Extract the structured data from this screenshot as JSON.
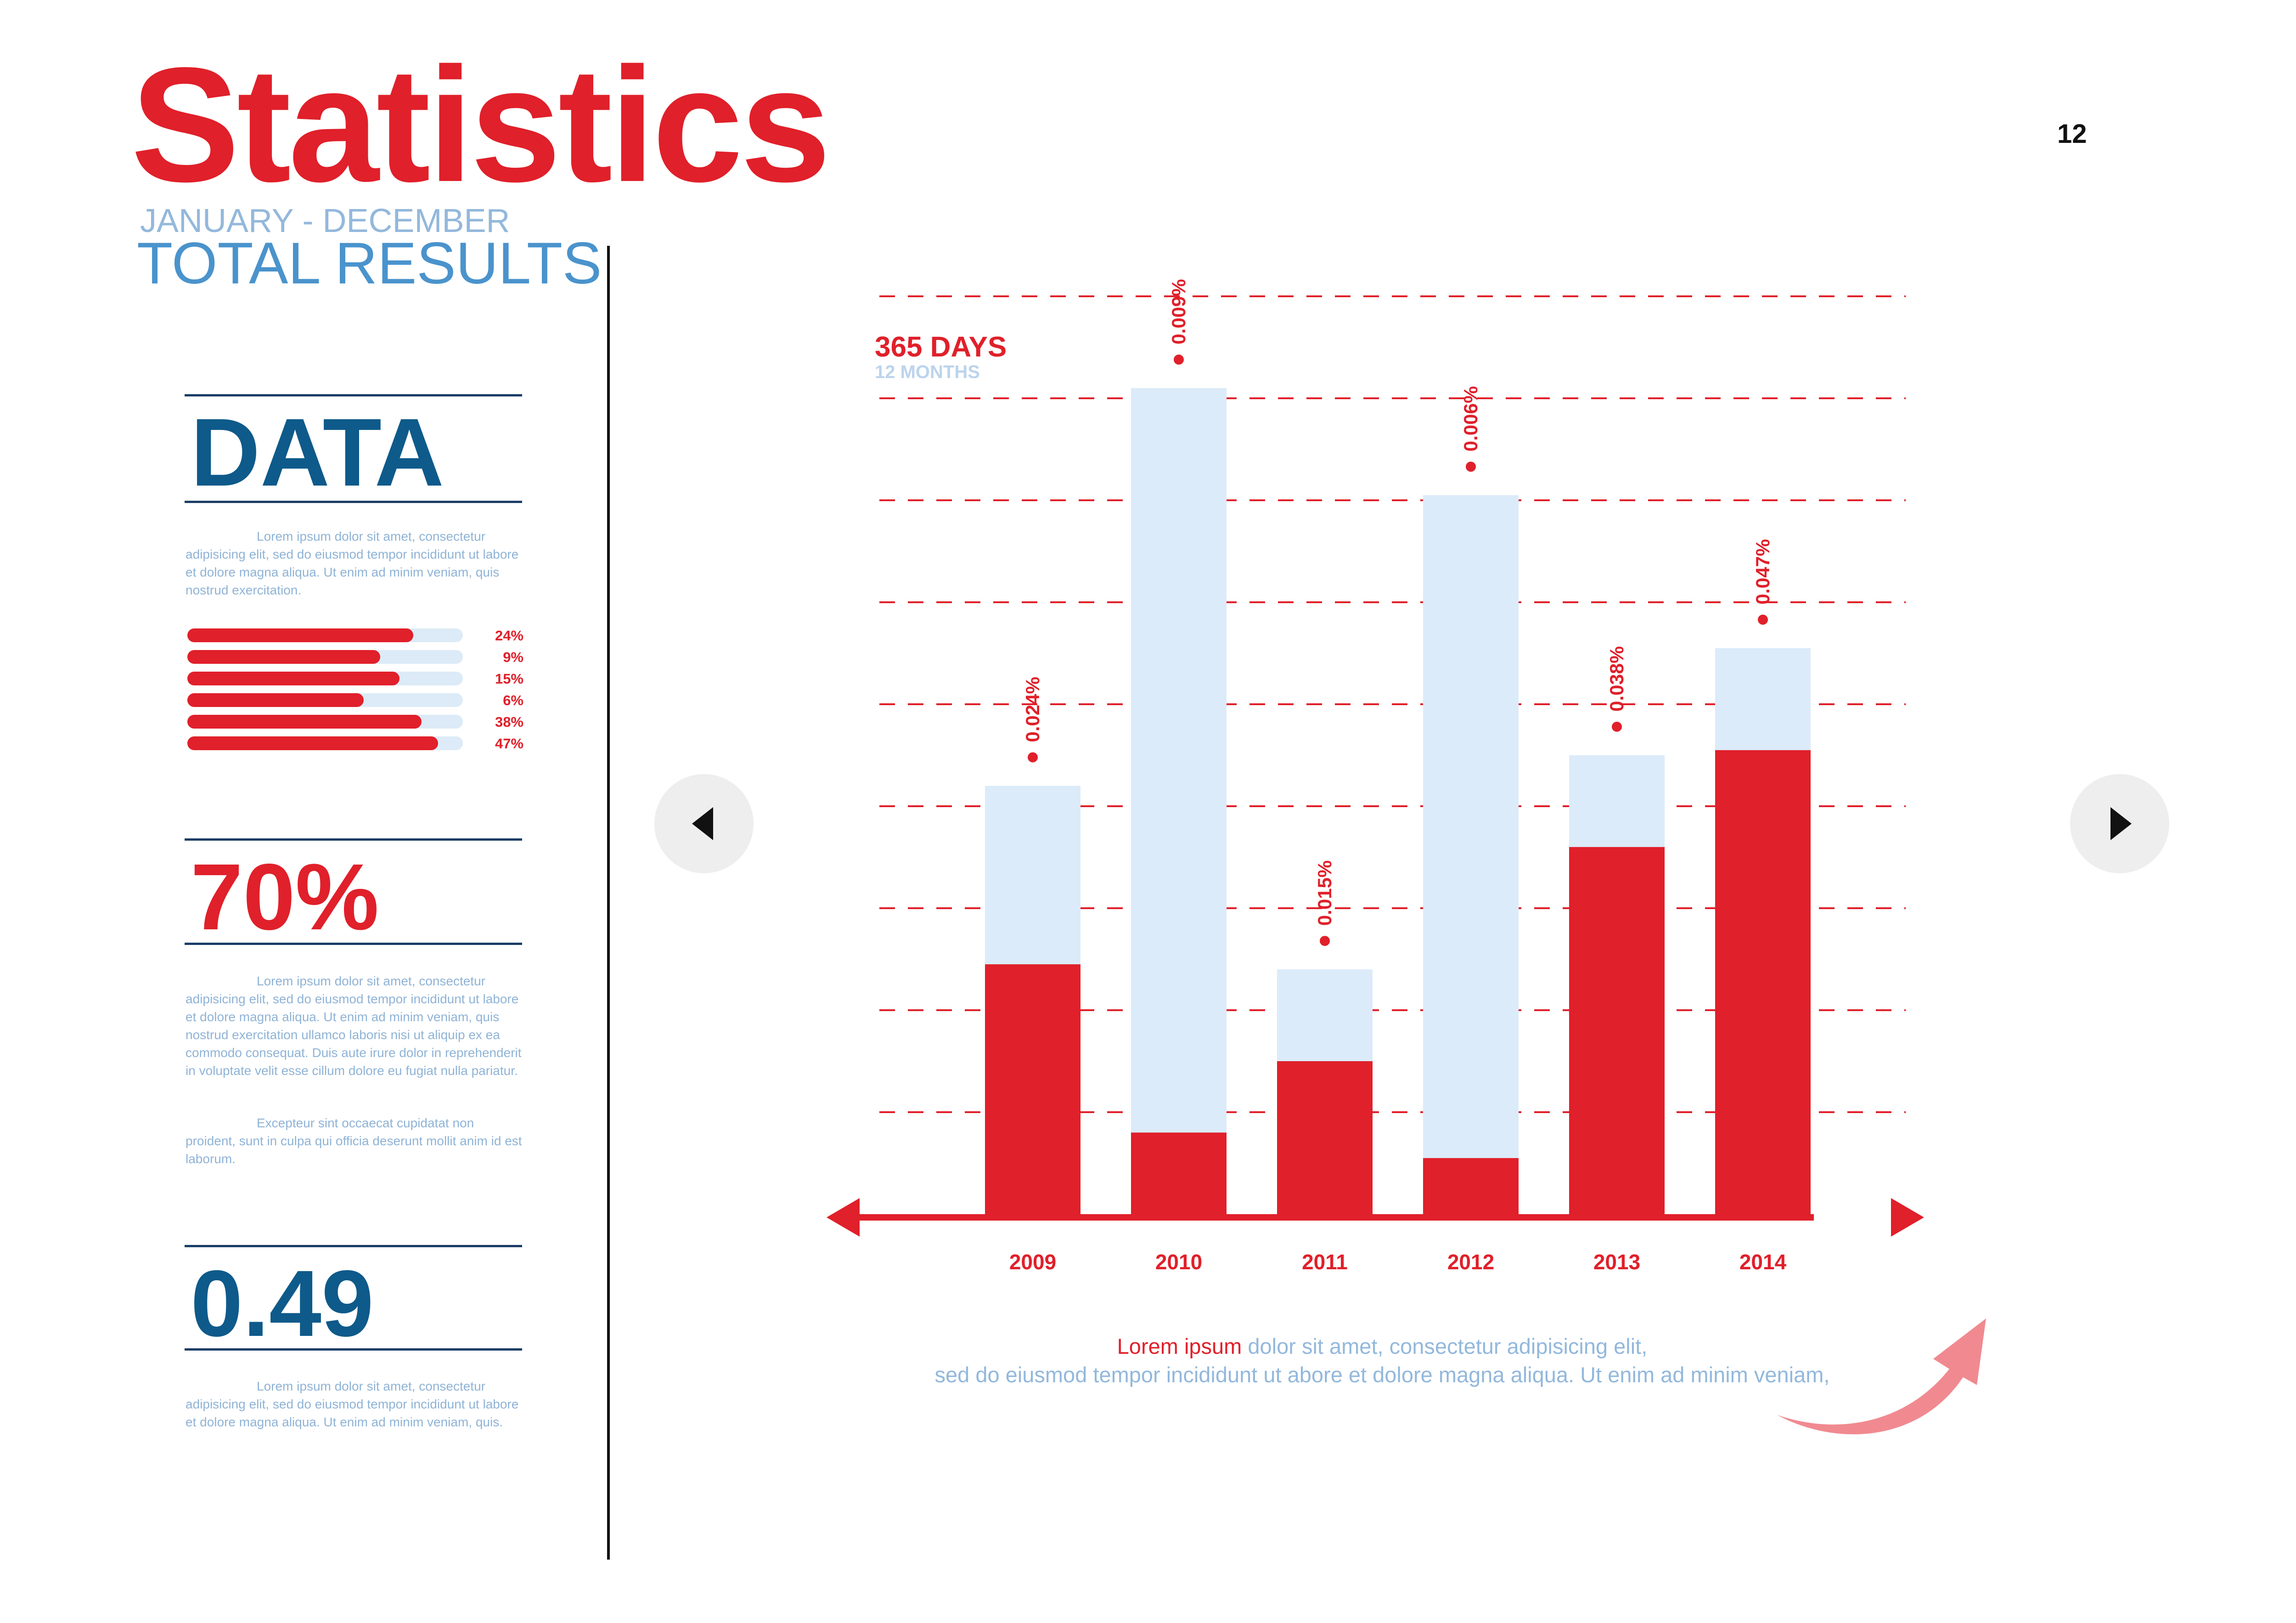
{
  "header": {
    "title": "Statistics",
    "subtitle": "JANUARY - DECEMBER",
    "heading": "TOTAL RESULTS",
    "page_number": "12"
  },
  "sidebar": {
    "data_block": {
      "label": "DATA",
      "text": "Lorem ipsum dolor sit amet, consectetur adipisicing elit, sed do eiusmod tempor incididunt ut labore et dolore magna aliqua. Ut enim ad minim veniam, quis nostrud exercitation.",
      "bars": [
        {
          "label": "24%",
          "fill": 0.82
        },
        {
          "label": "9%",
          "fill": 0.7
        },
        {
          "label": "15%",
          "fill": 0.77
        },
        {
          "label": "6%",
          "fill": 0.64
        },
        {
          "label": "38%",
          "fill": 0.85
        },
        {
          "label": "47%",
          "fill": 0.91
        }
      ]
    },
    "percent_block": {
      "value": "70%",
      "text1": "Lorem ipsum dolor sit amet, consectetur adipisicing elit, sed do eiusmod tempor incididunt ut labore et dolore magna aliqua. Ut enim ad minim veniam, quis nostrud exercitation ullamco laboris nisi ut aliquip ex ea commodo consequat. Duis aute irure dolor in reprehenderit in voluptate velit esse cillum dolore eu fugiat nulla pariatur.",
      "text2": "Excepteur sint occaecat cupidatat non proident, sunt in culpa qui officia deserunt mollit anim id est laborum."
    },
    "value_block": {
      "value": "0.49",
      "text": "Lorem ipsum dolor sit amet, consectetur adipisicing elit, sed do eiusmod tempor incididunt ut labore et dolore magna aliqua. Ut enim ad minim veniam, quis."
    }
  },
  "navigation": {
    "prev_icon": "triangle-left-icon",
    "next_icon": "triangle-right-icon"
  },
  "chart_legend": {
    "main": "365 DAYS",
    "sub": "12 MONTHS"
  },
  "chart_data": {
    "type": "bar",
    "categories": [
      "2009",
      "2010",
      "2011",
      "2012",
      "2013",
      "2014"
    ],
    "series": [
      {
        "values": [
          2.45,
          0.8,
          1.5,
          0.55,
          3.6,
          4.55
        ]
      },
      {
        "values": [
          4.2,
          8.1,
          2.4,
          7.05,
          4.5,
          5.55
        ]
      }
    ],
    "labels": [
      "0.024%",
      "0.009%",
      "0.015%",
      "0.006%",
      "0.038%",
      "0.047%"
    ],
    "ylim": [
      0,
      9
    ],
    "grid": true,
    "colors": {
      "dark": "#e0202a",
      "light": "#dcebf9",
      "grid": "#e0202a"
    }
  },
  "caption": {
    "highlight": "Lorem ipsum",
    "line1": " dolor sit amet, consectetur adipisicing elit,",
    "line2": "sed do eiusmod tempor incididunt ut abore et dolore magna aliqua. Ut enim ad minim veniam,"
  },
  "colors": {
    "accent": "#e0202a",
    "navy": "#0e5a8a",
    "light_blue": "#93b8dc",
    "arrow": "#f08a90"
  }
}
